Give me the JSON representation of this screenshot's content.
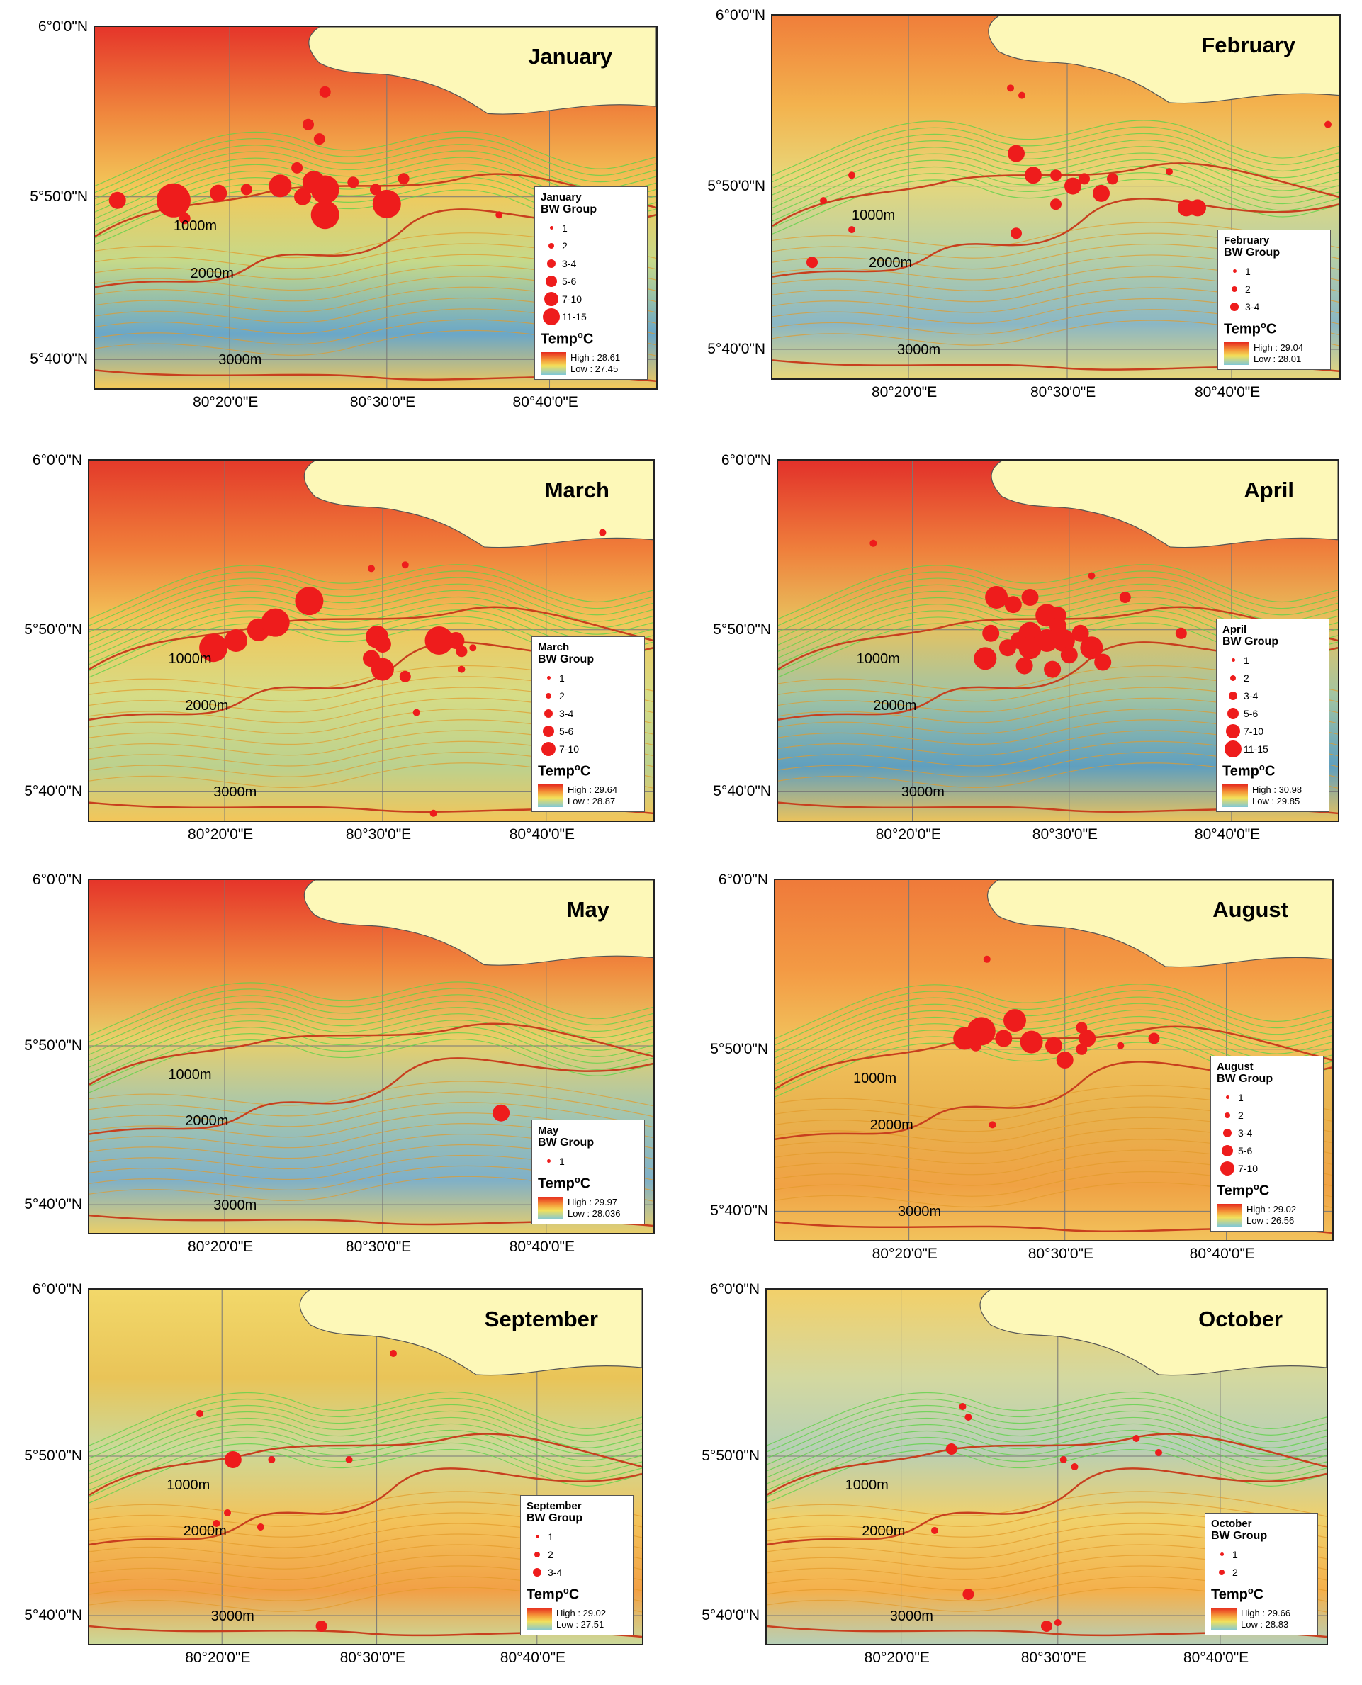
{
  "panels": [
    {
      "month": "January",
      "temp_high": "High : 28.61",
      "temp_low": "Low : 27.45",
      "bw_groups": [
        "1",
        "2",
        "3-4",
        "5-6",
        "7-10",
        "11-15"
      ],
      "lat_labels": [
        "6°0'0\"N",
        "5°50'0\"N",
        "5°40'0\"N"
      ],
      "lon_labels": [
        "80°20'0\"E",
        "80°30'0\"E",
        "80°40'0\"E"
      ],
      "depths": [
        "1000m",
        "2000m",
        "3000m"
      ]
    },
    {
      "month": "February",
      "temp_high": "High : 29.04",
      "temp_low": "Low : 28.01",
      "bw_groups": [
        "1",
        "2",
        "3-4"
      ],
      "lat_labels": [
        "6°0'0\"N",
        "5°50'0\"N",
        "5°40'0\"N"
      ],
      "lon_labels": [
        "80°20'0\"E",
        "80°30'0\"E",
        "80°40'0\"E"
      ],
      "depths": [
        "1000m",
        "2000m",
        "3000m"
      ]
    },
    {
      "month": "March",
      "temp_high": "High : 29.64",
      "temp_low": "Low : 28.87",
      "bw_groups": [
        "1",
        "2",
        "3-4",
        "5-6",
        "7-10"
      ],
      "lat_labels": [
        "6°0'0\"N",
        "5°50'0\"N",
        "5°40'0\"N"
      ],
      "lon_labels": [
        "80°20'0\"E",
        "80°30'0\"E",
        "80°40'0\"E"
      ],
      "depths": [
        "1000m",
        "2000m",
        "3000m"
      ]
    },
    {
      "month": "April",
      "temp_high": "High : 30.98",
      "temp_low": "Low : 29.85",
      "bw_groups": [
        "1",
        "2",
        "3-4",
        "5-6",
        "7-10",
        "11-15"
      ],
      "lat_labels": [
        "6°0'0\"N",
        "5°50'0\"N",
        "5°40'0\"N"
      ],
      "lon_labels": [
        "80°20'0\"E",
        "80°30'0\"E",
        "80°40'0\"E"
      ],
      "depths": [
        "1000m",
        "2000m",
        "3000m"
      ]
    },
    {
      "month": "May",
      "temp_high": "High : 29.97",
      "temp_low": "Low : 28.036",
      "bw_groups": [
        "1"
      ],
      "lat_labels": [
        "6°0'0\"N",
        "5°50'0\"N",
        "5°40'0\"N"
      ],
      "lon_labels": [
        "80°20'0\"E",
        "80°30'0\"E",
        "80°40'0\"E"
      ],
      "depths": [
        "1000m",
        "2000m",
        "3000m"
      ]
    },
    {
      "month": "August",
      "temp_high": "High : 29.02",
      "temp_low": "Low : 26.56",
      "bw_groups": [
        "1",
        "2",
        "3-4",
        "5-6",
        "7-10"
      ],
      "lat_labels": [
        "6°0'0\"N",
        "5°50'0\"N",
        "5°40'0\"N"
      ],
      "lon_labels": [
        "80°20'0\"E",
        "80°30'0\"E",
        "80°40'0\"E"
      ],
      "depths": [
        "1000m",
        "2000m",
        "3000m"
      ]
    },
    {
      "month": "September",
      "temp_high": "High : 29.02",
      "temp_low": "Low : 27.51",
      "bw_groups": [
        "1",
        "2",
        "3-4"
      ],
      "lat_labels": [
        "6°0'0\"N",
        "5°50'0\"N",
        "5°40'0\"N"
      ],
      "lon_labels": [
        "80°20'0\"E",
        "80°30'0\"E",
        "80°40'0\"E"
      ],
      "depths": [
        "1000m",
        "2000m",
        "3000m"
      ]
    },
    {
      "month": "October",
      "temp_high": "High : 29.66",
      "temp_low": "Low : 28.83",
      "bw_groups": [
        "1",
        "2"
      ],
      "lat_labels": [
        "6°0'0\"N",
        "5°50'0\"N",
        "5°40'0\"N"
      ],
      "lon_labels": [
        "80°20'0\"E",
        "80°30'0\"E",
        "80°40'0\"E"
      ],
      "depths": [
        "1000m",
        "2000m",
        "3000m"
      ]
    }
  ],
  "legend_text": {
    "bw_group": "BW Group",
    "temp": "Temp",
    "temp_unit": "o",
    "temp_c": "C"
  },
  "colors": {
    "dot": "#ee1c1c",
    "land": "#fdf8b8",
    "isobath": "#c83f1e"
  }
}
